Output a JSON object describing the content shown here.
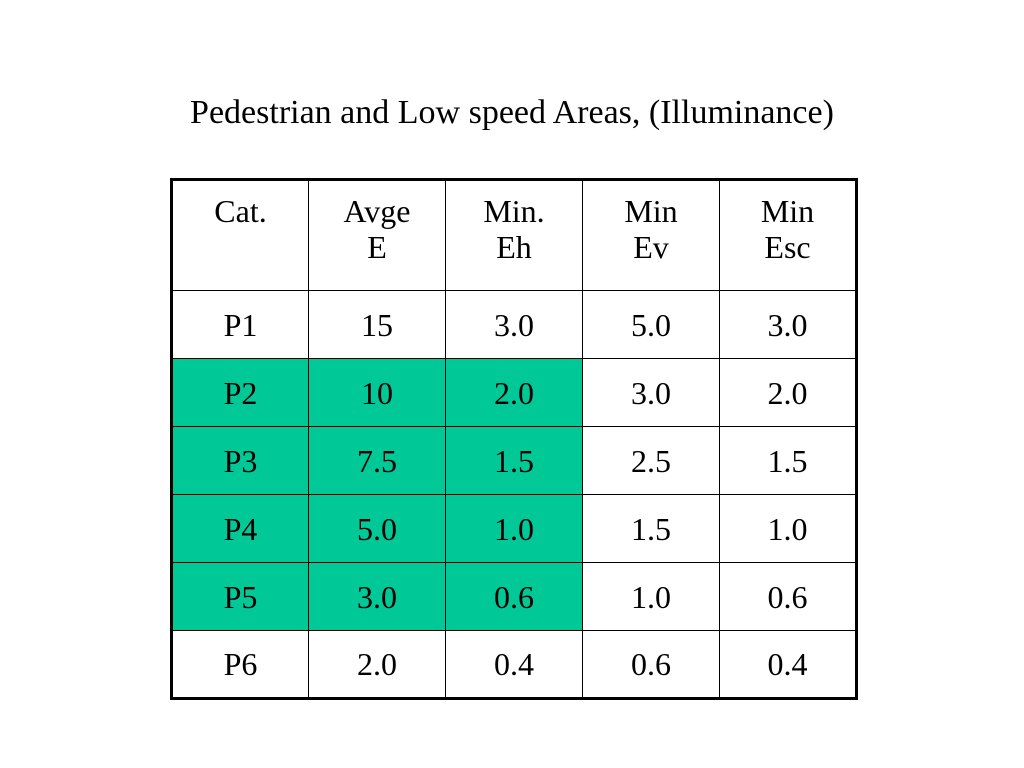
{
  "title": "Pedestrian and Low speed Areas, (Illuminance)",
  "table": {
    "headers": [
      [
        "Cat."
      ],
      [
        "Avge",
        "E"
      ],
      [
        "Min.",
        "Eh"
      ],
      [
        "Min",
        "Ev"
      ],
      [
        "Min",
        "Esc"
      ]
    ],
    "rows": [
      [
        "P1",
        "15",
        "3.0",
        "5.0",
        "3.0"
      ],
      [
        "P2",
        "10",
        "2.0",
        "3.0",
        "2.0"
      ],
      [
        "P3",
        "7.5",
        "1.5",
        "2.5",
        "1.5"
      ],
      [
        "P4",
        "5.0",
        "1.0",
        "1.5",
        "1.0"
      ],
      [
        "P5",
        "3.0",
        "0.6",
        "1.0",
        "0.6"
      ],
      [
        "P6",
        "2.0",
        "0.4",
        "0.6",
        "0.4"
      ]
    ],
    "highlight_color": "#00c896",
    "highlighted_rows": [
      "P2",
      "P3",
      "P4",
      "P5"
    ],
    "highlighted_columns": [
      "Cat.",
      "Avge E",
      "Min. Eh"
    ]
  }
}
